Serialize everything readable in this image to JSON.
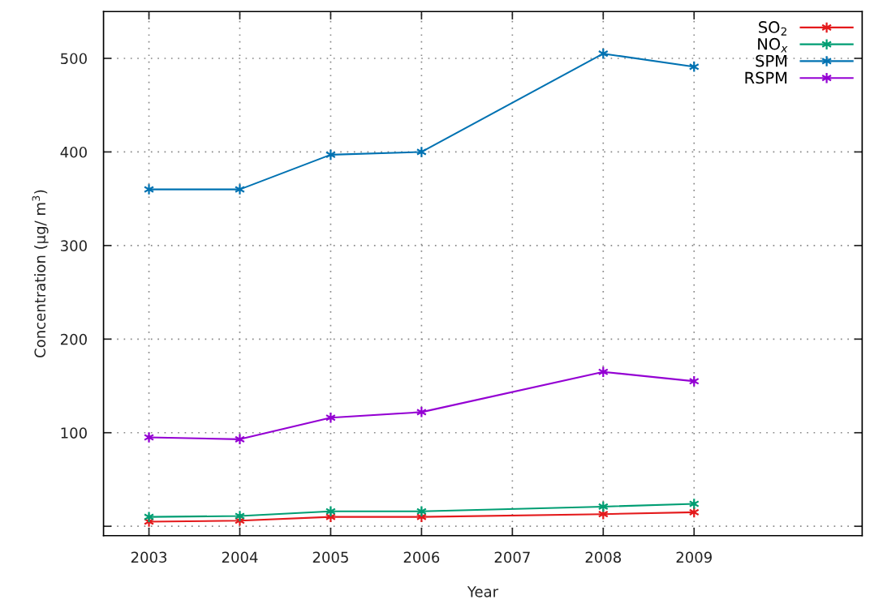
{
  "chart_data": {
    "type": "line",
    "xlabel": "Year",
    "ylabel": "Concentration (µg/ m$^{3}$)",
    "x": [
      2003,
      2004,
      2005,
      2006,
      2008,
      2009
    ],
    "series": [
      {
        "name": "SO$_{2}$",
        "color": "#e41a1c",
        "values": [
          5,
          6,
          10,
          10,
          13,
          15
        ]
      },
      {
        "name": "NO$_{x}$",
        "color": "#009e73",
        "values": [
          10,
          11,
          16,
          16,
          21,
          24
        ]
      },
      {
        "name": "SPM",
        "color": "#0072b2",
        "values": [
          360,
          360,
          397,
          400,
          505,
          491
        ]
      },
      {
        "name": "RSPM",
        "color": "#9400d3",
        "values": [
          95,
          93,
          116,
          122,
          165,
          155
        ]
      }
    ],
    "xlim": [
      2002.5,
      2010.85
    ],
    "xticks": [
      2003,
      2004,
      2005,
      2006,
      2007,
      2008,
      2009
    ],
    "ylim": [
      -10,
      550
    ],
    "yticks": [
      {
        "value": 0,
        "label": null
      },
      100,
      200,
      300,
      400,
      500
    ],
    "grid": true,
    "legend": "top right",
    "marker": "cross",
    "line_style": "solid"
  }
}
